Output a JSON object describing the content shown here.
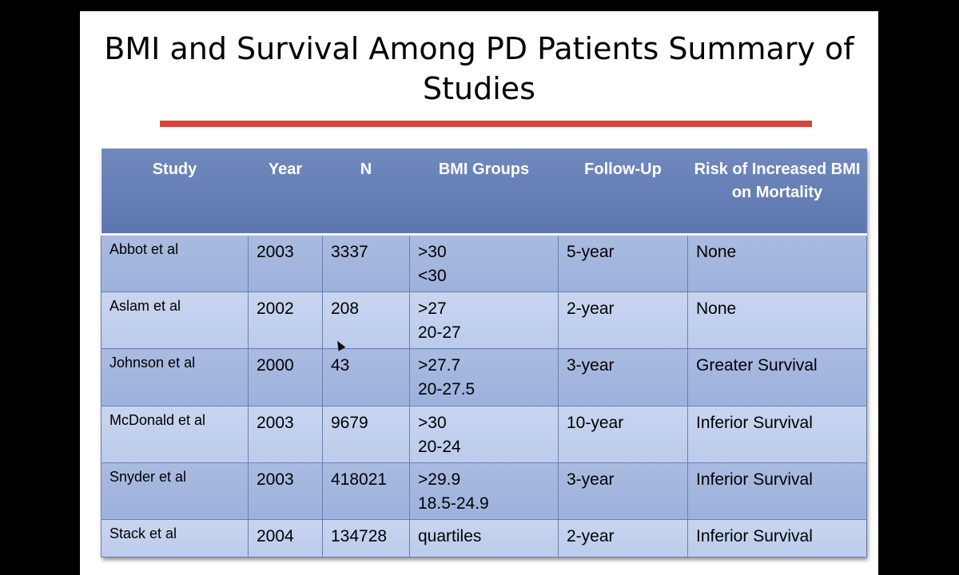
{
  "slide": {
    "title": "BMI and Survival Among PD Patients Summary of Studies",
    "accent_color": "#d8433a"
  },
  "table": {
    "headers": [
      "Study",
      "Year",
      "N",
      "BMI Groups",
      "Follow-Up",
      "Risk of Increased BMI on Mortality"
    ],
    "rows": [
      {
        "study": "Abbot et al",
        "year": "2003",
        "n": "3337",
        "bmi_1": ">30",
        "bmi_2": "<30",
        "follow_up": "5-year",
        "risk": "None"
      },
      {
        "study": "Aslam et al",
        "year": "2002",
        "n": "208",
        "bmi_1": ">27",
        "bmi_2": "20-27",
        "follow_up": "2-year",
        "risk": "None"
      },
      {
        "study": "Johnson et al",
        "year": "2000",
        "n": "43",
        "bmi_1": ">27.7",
        "bmi_2": "20-27.5",
        "follow_up": "3-year",
        "risk": "Greater Survival"
      },
      {
        "study": "McDonald et al",
        "year": "2003",
        "n": "9679",
        "bmi_1": ">30",
        "bmi_2": "20-24",
        "follow_up": "10-year",
        "risk": "Inferior Survival"
      },
      {
        "study": "Snyder et al",
        "year": "2003",
        "n": "418021",
        "bmi_1": ">29.9",
        "bmi_2": "18.5-24.9",
        "follow_up": "3-year",
        "risk": "Inferior Survival"
      },
      {
        "study": "Stack et al",
        "year": "2004",
        "n": "134728",
        "bmi_1": "quartiles",
        "bmi_2": "",
        "follow_up": "2-year",
        "risk": "Inferior Survival"
      }
    ]
  }
}
